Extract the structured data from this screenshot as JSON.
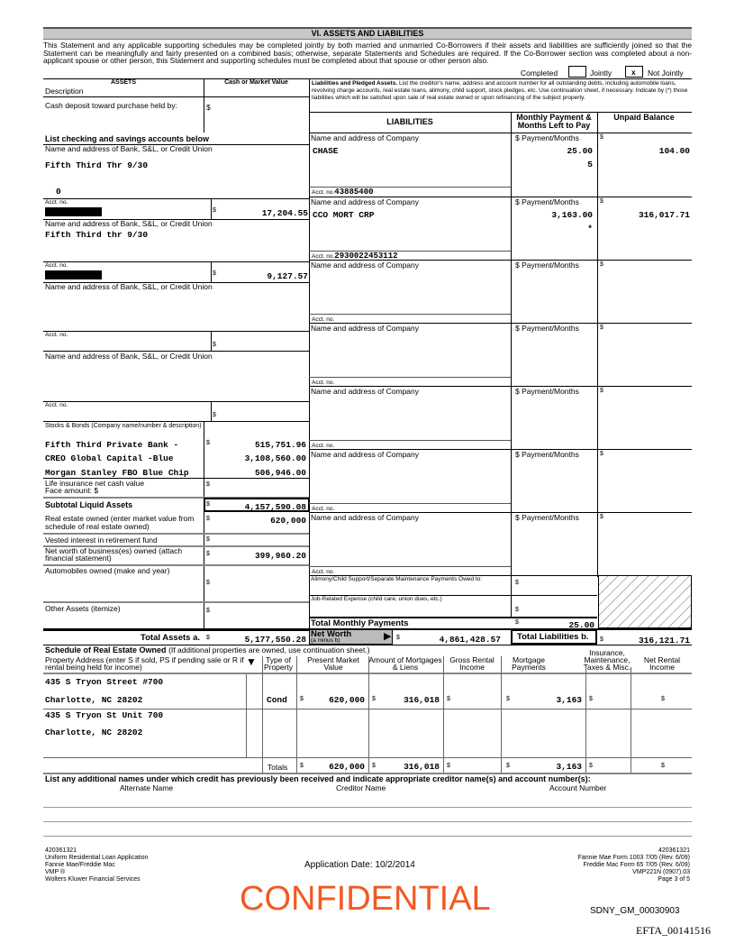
{
  "section_title": "VI. ASSETS AND LIABILITIES",
  "intro": "This Statement and any applicable supporting schedules may be completed jointly by both married and unmarried Co-Borrowers if their assets and liabilities are sufficiently joined so that the Statement can be meaningfully and fairly presented on a combined basis; otherwise, separate Statements and Schedules are required. If the Co-Borrower section was completed about a non-applicant spouse or other person, this Statement and supporting schedules must be completed about that spouse or other person also.",
  "completed": {
    "label": "Completed",
    "jointly": "Jointly",
    "jointly_checked": "",
    "not_jointly": "Not Jointly",
    "not_jointly_checked": "x"
  },
  "assets": {
    "header": "ASSETS",
    "description": "Description",
    "value_header": "Cash or Market Value",
    "cash_deposit": "Cash deposit toward purchase held by:",
    "list_header": "List checking and savings accounts below",
    "bank_label": "Name and address of Bank, S&L, or Credit Union",
    "acct_label": "Acct. no.",
    "banks": [
      {
        "name": "Fifth Third Thr 9/30",
        "extra": "0",
        "value": "17,204.55"
      },
      {
        "name": "Fifth Third thr 9/30",
        "extra": "",
        "value": "9,127.57"
      },
      {
        "name": "",
        "extra": "",
        "value": ""
      },
      {
        "name": "",
        "extra": "",
        "value": ""
      }
    ],
    "stocks_label": "Stocks & Bonds (Company name/number & description)",
    "stocks": [
      {
        "name": "Fifth Third Private Bank -",
        "value": "515,751.96"
      },
      {
        "name": "CREO Global Capital -Blue",
        "value": "3,108,560.00"
      },
      {
        "name": "Morgan Stanley FBO Blue Chip",
        "value": "506,946.00"
      }
    ],
    "life_insurance": "Life insurance net cash value",
    "face_amount": "Face amount: $",
    "subtotal_label": "Subtotal Liquid Assets",
    "subtotal": "4,157,590.08",
    "real_estate_label": "Real estate owned (enter market value from schedule of real estate owned)",
    "real_estate": "620,000",
    "vested_label": "Vested interest in retirement fund",
    "business_label": "Net worth of business(es) owned (attach financial statement)",
    "business": "399,960.20",
    "autos_label": "Automobiles owned (make and year)",
    "other_label": "Other Assets (itemize)",
    "total_label": "Total Assets a.",
    "total": "5,177,550.28",
    "dollar": "$"
  },
  "liabilities": {
    "instructions_bold": "Liabilities and Pledged Assets.",
    "instructions": "List the creditor's name, address and account number for all outstanding debts, including automobile loans, revolving charge accounts, real estate loans, alimony, child support, stock pledges, etc. Use continuation sheet, if necessary. Indicate by (*) those liabilities which will be satisfied upon sale of real estate owned or upon refinancing of the subject property.",
    "header": "LIABILITIES",
    "payment_header": "Monthly Payment & Months Left to Pay",
    "balance_header": "Unpaid Balance",
    "company_label": "Name and address of Company",
    "payment_label": "$ Payment/Months",
    "acct_label": "Acct. no.",
    "items": [
      {
        "company": "CHASE",
        "acct": "43885400",
        "payment": "25.00",
        "months": "5",
        "balance": "104.00"
      },
      {
        "company": "CCO MORT CRP",
        "acct": "2930022453112",
        "payment": "3,163.00",
        "months": "*",
        "balance": "316,017.71"
      },
      {
        "company": "",
        "acct": "",
        "payment": "",
        "months": "",
        "balance": ""
      },
      {
        "company": "",
        "acct": "",
        "payment": "",
        "months": "",
        "balance": ""
      },
      {
        "company": "",
        "acct": "",
        "payment": "",
        "months": "",
        "balance": ""
      },
      {
        "company": "",
        "acct": "",
        "payment": "",
        "months": "",
        "balance": ""
      },
      {
        "company": "",
        "acct": "",
        "payment": "",
        "months": "",
        "balance": ""
      }
    ],
    "alimony_label": "Alimony/Child Support/Separate Maintenance Payments Owed to:",
    "job_label": "Job-Related Expense (child care, union dues, etc.)",
    "total_monthly_label": "Total Monthly Payments",
    "total_monthly": "25.00",
    "net_worth_label": "Net Worth",
    "net_worth_sub": "(a minus b)",
    "net_worth": "4,861,428.57",
    "total_label": "Total Liabilities b.",
    "total": "316,121.71"
  },
  "real_estate": {
    "title": "Schedule of Real Estate Owned",
    "title_note": "(If additional properties are owned, use continuation sheet.)",
    "columns": [
      "Property Address (enter S if sold, PS if pending sale or R if rental being held for income)",
      "Type of Property",
      "Present Market Value",
      "Amount of Mortgages & Liens",
      "Gross Rental Income",
      "Mortgage Payments",
      "Insurance, Maintenance, Taxes & Misc.",
      "Net Rental Income"
    ],
    "properties": [
      {
        "line1": "435 S Tryon Street #700",
        "line2": "Charlotte, NC  28202",
        "type": "Cond",
        "value": "620,000",
        "mortgage": "316,018",
        "rental": "",
        "payments": "3,163",
        "insurance": "",
        "net": ""
      },
      {
        "line1": "435 S Tryon St Unit 700",
        "line2": "Charlotte, NC  28202"
      }
    ],
    "totals_label": "Totals",
    "totals": {
      "value": "620,000",
      "mortgage": "316,018",
      "payments": "3,163"
    }
  },
  "additional_names": {
    "title": "List any additional names under which credit has previously been received and indicate appropriate creditor name(s) and account number(s):",
    "alt": "Alternate Name",
    "creditor": "Creditor Name",
    "account": "Account Number"
  },
  "footer": {
    "left": [
      "420361321",
      "Uniform Residential Loan Application",
      "Fannie Mae/Freddie Mac",
      "VMP ®",
      "Wolters Kluwer Financial Services"
    ],
    "center": "Application Date: 10/2/2014",
    "right": [
      "420361321",
      "Fannie Mae Form 1003 7/05 (Rev. 6/09)",
      "Freddie Mac Form 65 7/05 (Rev. 6/09)",
      "VMP221N (0907).03",
      "Page 3 of 5"
    ],
    "confidential": "CONFIDENTIAL",
    "confidential_color": "#f15a22",
    "bates": "SDNY_GM_00030903",
    "efta": "EFTA_00141516"
  }
}
